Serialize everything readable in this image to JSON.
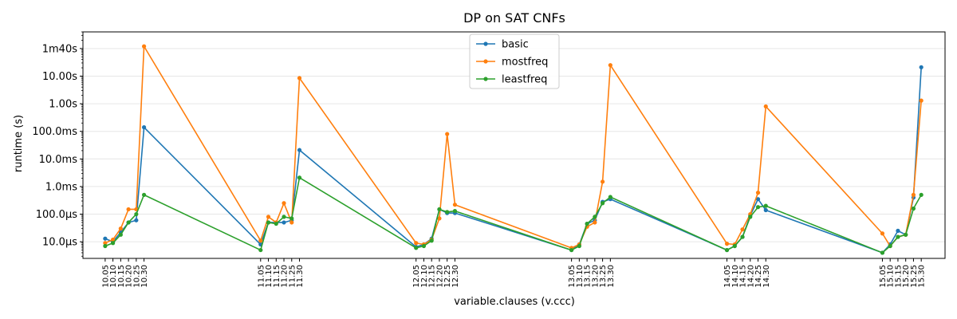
{
  "chart_data": {
    "type": "line",
    "title": "DP on SAT CNFs",
    "xlabel": "variable.clauses (v.ccc)",
    "ylabel": "runtime (s)",
    "yscale": "log",
    "ylim": [
      2.5e-06,
      400
    ],
    "grid": "y",
    "legend_position": "top-center",
    "colors": {
      "basic": "#1f77b4",
      "mostfreq": "#ff7f0e",
      "leastfreq": "#2ca02c"
    },
    "y_ticks": [
      {
        "value": 1e-05,
        "label": "10.0µs"
      },
      {
        "value": 0.0001,
        "label": "100.0µs"
      },
      {
        "value": 0.001,
        "label": "1.0ms"
      },
      {
        "value": 0.01,
        "label": "10.0ms"
      },
      {
        "value": 0.1,
        "label": "100.0ms"
      },
      {
        "value": 1,
        "label": "1.00s"
      },
      {
        "value": 10,
        "label": "10.00s"
      },
      {
        "value": 100,
        "label": "1m40s"
      }
    ],
    "x": [
      10.05,
      10.1,
      10.15,
      10.2,
      10.25,
      10.3,
      11.05,
      11.1,
      11.15,
      11.2,
      11.25,
      11.3,
      12.05,
      12.1,
      12.15,
      12.2,
      12.25,
      12.3,
      13.05,
      13.1,
      13.15,
      13.2,
      13.25,
      13.3,
      14.05,
      14.1,
      14.15,
      14.2,
      14.25,
      14.3,
      15.05,
      15.1,
      15.15,
      15.2,
      15.25,
      15.3
    ],
    "categories": [
      "10.05",
      "10.10",
      "10.15",
      "10.20",
      "10.25",
      "10.30",
      "11.05",
      "11.10",
      "11.15",
      "11.20",
      "11.25",
      "11.30",
      "12.05",
      "12.10",
      "12.15",
      "12.20",
      "12.25",
      "12.30",
      "13.05",
      "13.10",
      "13.15",
      "13.20",
      "13.25",
      "13.30",
      "14.05",
      "14.10",
      "14.15",
      "14.20",
      "14.25",
      "14.30",
      "15.05",
      "15.10",
      "15.15",
      "15.20",
      "15.25",
      "15.30"
    ],
    "series": [
      {
        "name": "basic",
        "values": [
          1.3e-05,
          1e-05,
          2.2e-05,
          5e-05,
          6e-05,
          0.14,
          8e-06,
          5e-05,
          5e-05,
          5e-05,
          6e-05,
          0.021,
          6.5e-06,
          8e-06,
          1.3e-05,
          0.00015,
          0.00011,
          0.00011,
          5e-06,
          8e-06,
          4.5e-05,
          6e-05,
          0.00028,
          0.00035,
          5e-06,
          7e-06,
          1.5e-05,
          9e-05,
          0.00035,
          0.00014,
          4e-06,
          8e-06,
          2.5e-05,
          1.8e-05,
          0.0004,
          21.0
        ]
      },
      {
        "name": "mostfreq",
        "values": [
          9e-06,
          1.2e-05,
          3e-05,
          0.00015,
          0.00015,
          120.0,
          1.1e-05,
          8e-05,
          5e-05,
          0.00025,
          5e-05,
          8.5,
          9e-06,
          8e-06,
          1.2e-05,
          7e-05,
          0.08,
          0.00022,
          6e-06,
          8e-06,
          3.5e-05,
          5e-05,
          0.0015,
          25.0,
          8.5e-06,
          8e-06,
          2.8e-05,
          0.0001,
          0.0006,
          0.8,
          2e-05,
          7e-06,
          1.5e-05,
          1.8e-05,
          0.0005,
          1.3
        ]
      },
      {
        "name": "leastfreq",
        "values": [
          7e-06,
          9e-06,
          1.8e-05,
          5e-05,
          0.0001,
          0.0005,
          5e-06,
          5e-05,
          4.5e-05,
          8e-05,
          7e-05,
          0.0021,
          6e-06,
          7e-06,
          1.1e-05,
          0.00015,
          0.00012,
          0.00013,
          5e-06,
          7e-06,
          4.5e-05,
          8e-05,
          0.00025,
          0.00042,
          5e-06,
          7e-06,
          1.5e-05,
          8e-05,
          0.00018,
          0.0002,
          4e-06,
          7e-06,
          1.5e-05,
          1.8e-05,
          0.00016,
          0.0005
        ]
      }
    ]
  }
}
